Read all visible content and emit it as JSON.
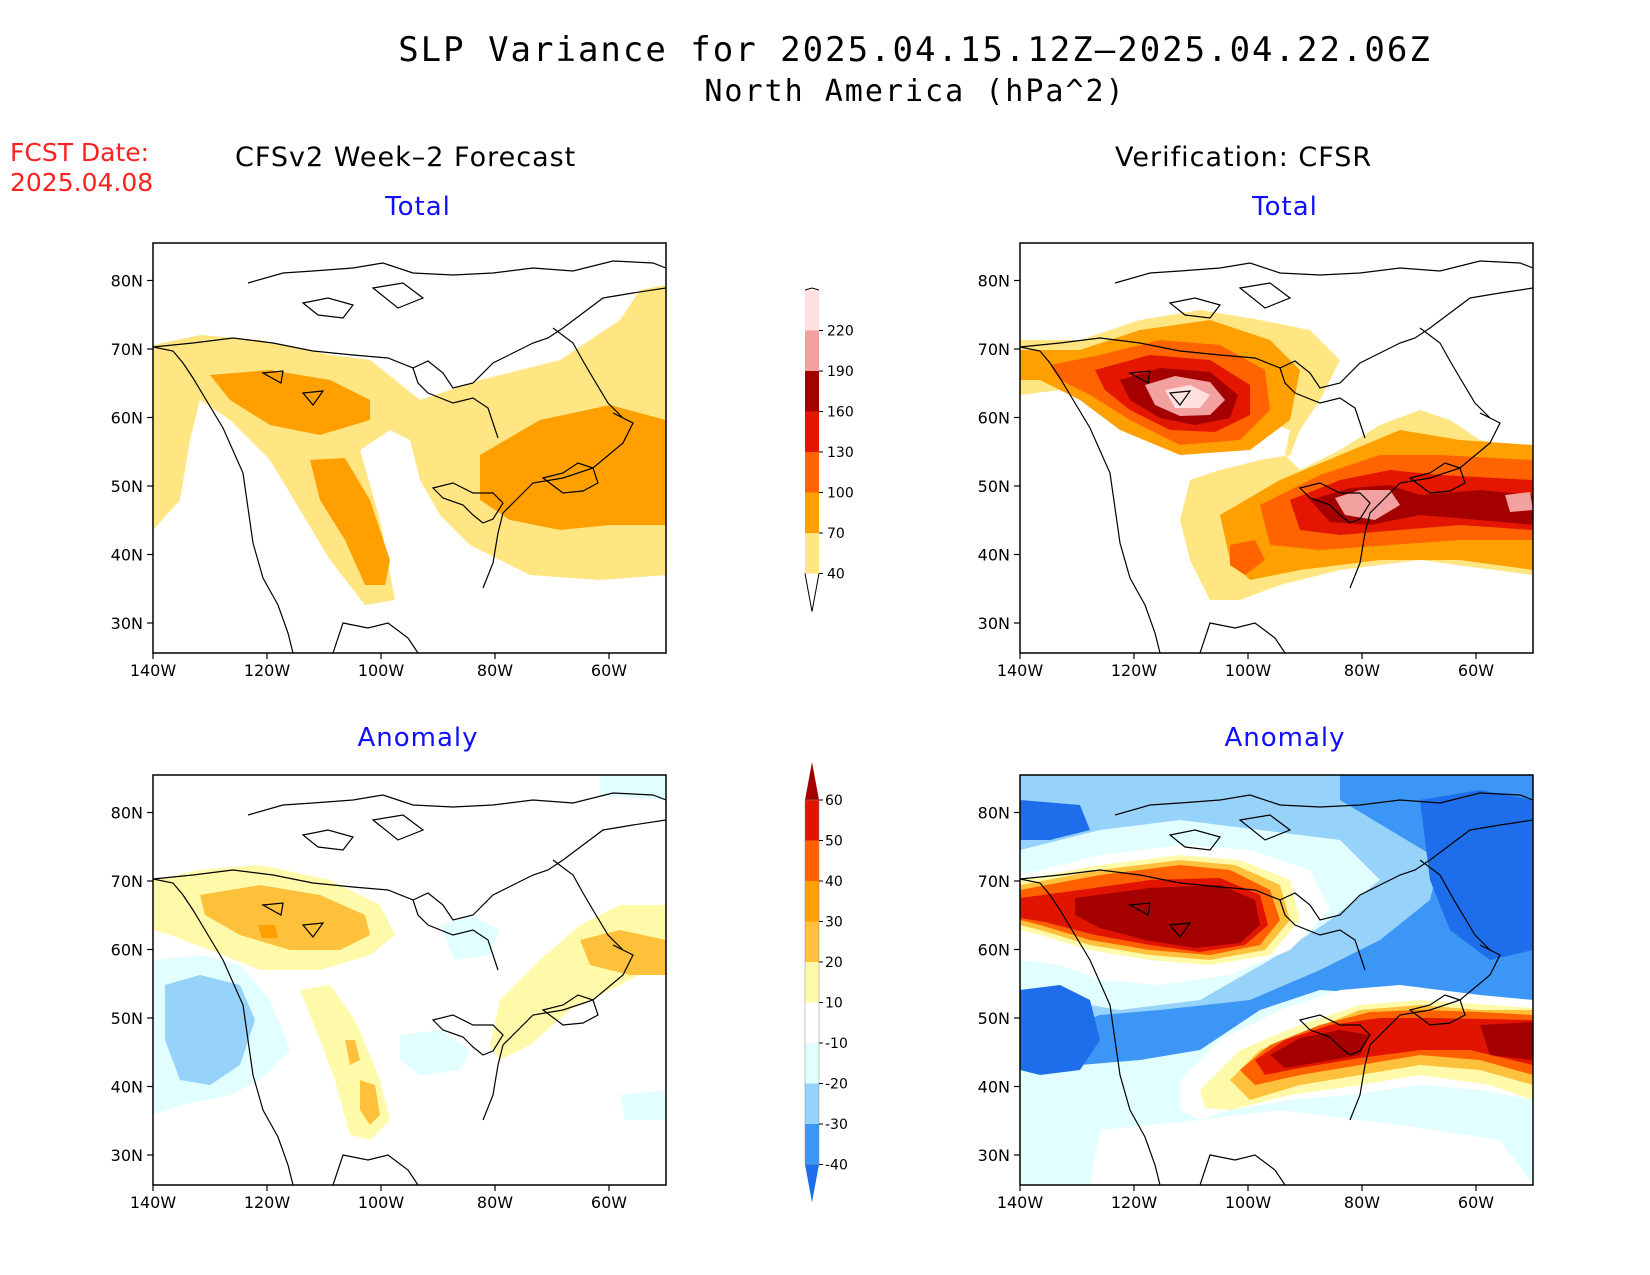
{
  "title_line1": "SLP Variance for 2025.04.15.12Z–2025.04.22.06Z",
  "title_line2": "North America (hPa^2)",
  "fcst_label": "FCST Date:",
  "fcst_date": "2025.04.08",
  "left_column_title": "CFSv2 Week–2 Forecast",
  "right_column_title": "Verification: CFSR",
  "panels": {
    "top_left": "Total",
    "top_right": "Total",
    "bottom_left": "Anomaly",
    "bottom_right": "Anomaly"
  },
  "lat_ticks": [
    "30N",
    "40N",
    "50N",
    "60N",
    "70N",
    "80N"
  ],
  "lon_ticks": [
    "140W",
    "120W",
    "100W",
    "80W",
    "60W"
  ],
  "total_colorbar": {
    "labels": [
      "40",
      "70",
      "100",
      "130",
      "160",
      "190",
      "220"
    ],
    "colors": [
      "#ffe682",
      "#ffa000",
      "#ff6400",
      "#e41600",
      "#a50000",
      "#f2a0a0",
      "#ffe0e0"
    ]
  },
  "anomaly_colorbar": {
    "labels": [
      "-40",
      "-30",
      "-20",
      "-10",
      "10",
      "20",
      "30",
      "40",
      "50",
      "60"
    ],
    "colors": [
      "#1e6eeb",
      "#3c96f5",
      "#96d2fa",
      "#e1ffff",
      "#ffffff",
      "#fffaaa",
      "#ffc03c",
      "#ffa000",
      "#ff6000",
      "#e11400",
      "#a50000"
    ]
  }
}
